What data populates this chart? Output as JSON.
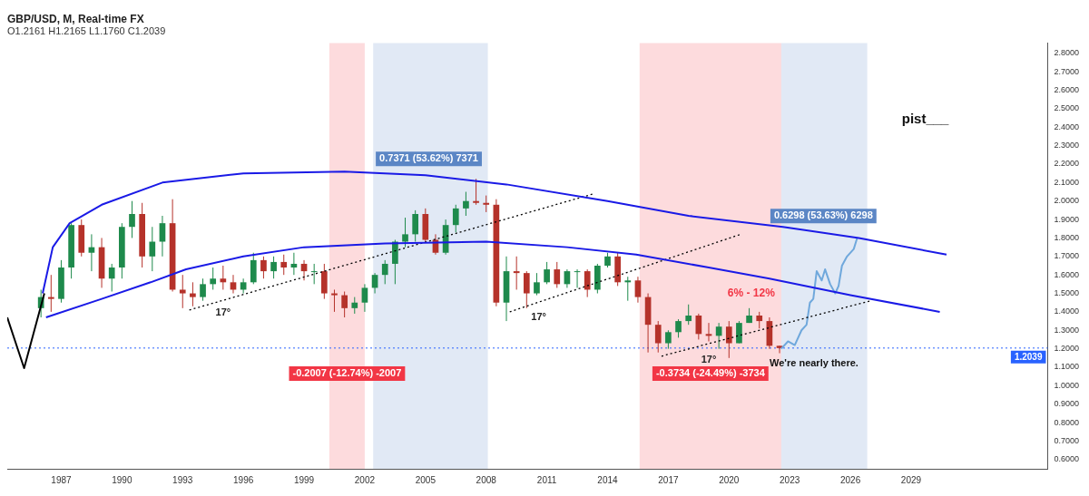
{
  "chart_data": {
    "type": "candlestick",
    "title": "GBP/USD, M, Real-time FX",
    "subtitle": "O1.2161 H1.2165 L1.1760 C1.2039",
    "x": [
      "1986-01",
      "1986-07",
      "1987-01",
      "1987-07",
      "1988-01",
      "1988-07",
      "1989-01",
      "1989-07",
      "1990-01",
      "1990-07",
      "1991-01",
      "1991-07",
      "1992-01",
      "1992-07",
      "1993-01",
      "1993-07",
      "1994-01",
      "1994-07",
      "1995-01",
      "1995-07",
      "1996-01",
      "1996-07",
      "1997-01",
      "1997-07",
      "1998-01",
      "1998-07",
      "1999-01",
      "1999-07",
      "2000-01",
      "2000-07",
      "2001-01",
      "2001-07",
      "2002-01",
      "2002-07",
      "2003-01",
      "2003-07",
      "2004-01",
      "2004-07",
      "2005-01",
      "2005-07",
      "2006-01",
      "2006-07",
      "2007-01",
      "2007-07",
      "2008-01",
      "2008-07",
      "2009-01",
      "2009-07",
      "2010-01",
      "2010-07",
      "2011-01",
      "2011-07",
      "2012-01",
      "2012-07",
      "2013-01",
      "2013-07",
      "2014-01",
      "2014-07",
      "2015-01",
      "2015-07",
      "2016-01",
      "2016-07",
      "2017-01",
      "2017-07",
      "2018-01",
      "2018-07",
      "2019-01",
      "2019-07",
      "2020-01",
      "2020-07",
      "2021-01",
      "2021-07",
      "2022-01",
      "2022-07"
    ],
    "ohlc": [
      [
        1.42,
        1.52,
        1.37,
        1.48
      ],
      [
        1.48,
        1.6,
        1.4,
        1.47
      ],
      [
        1.47,
        1.68,
        1.45,
        1.64
      ],
      [
        1.64,
        1.88,
        1.58,
        1.87
      ],
      [
        1.87,
        1.9,
        1.7,
        1.72
      ],
      [
        1.72,
        1.82,
        1.62,
        1.75
      ],
      [
        1.75,
        1.8,
        1.53,
        1.58
      ],
      [
        1.58,
        1.66,
        1.51,
        1.64
      ],
      [
        1.64,
        1.88,
        1.58,
        1.86
      ],
      [
        1.86,
        2.0,
        1.8,
        1.93
      ],
      [
        1.93,
        1.99,
        1.64,
        1.7
      ],
      [
        1.7,
        1.86,
        1.62,
        1.78
      ],
      [
        1.78,
        1.92,
        1.7,
        1.88
      ],
      [
        1.88,
        2.01,
        1.51,
        1.52
      ],
      [
        1.52,
        1.6,
        1.42,
        1.5
      ],
      [
        1.5,
        1.56,
        1.43,
        1.48
      ],
      [
        1.48,
        1.58,
        1.46,
        1.55
      ],
      [
        1.55,
        1.64,
        1.52,
        1.58
      ],
      [
        1.58,
        1.65,
        1.52,
        1.56
      ],
      [
        1.56,
        1.6,
        1.5,
        1.52
      ],
      [
        1.52,
        1.58,
        1.5,
        1.56
      ],
      [
        1.56,
        1.72,
        1.55,
        1.68
      ],
      [
        1.68,
        1.7,
        1.58,
        1.62
      ],
      [
        1.62,
        1.7,
        1.58,
        1.67
      ],
      [
        1.67,
        1.71,
        1.6,
        1.64
      ],
      [
        1.64,
        1.72,
        1.6,
        1.66
      ],
      [
        1.66,
        1.68,
        1.57,
        1.62
      ],
      [
        1.62,
        1.66,
        1.55,
        1.62
      ],
      [
        1.62,
        1.66,
        1.47,
        1.5
      ],
      [
        1.5,
        1.52,
        1.4,
        1.49
      ],
      [
        1.49,
        1.51,
        1.37,
        1.42
      ],
      [
        1.42,
        1.48,
        1.39,
        1.45
      ],
      [
        1.45,
        1.55,
        1.4,
        1.53
      ],
      [
        1.53,
        1.61,
        1.5,
        1.6
      ],
      [
        1.6,
        1.68,
        1.55,
        1.66
      ],
      [
        1.66,
        1.79,
        1.55,
        1.78
      ],
      [
        1.78,
        1.91,
        1.75,
        1.82
      ],
      [
        1.82,
        1.95,
        1.78,
        1.93
      ],
      [
        1.93,
        1.96,
        1.78,
        1.79
      ],
      [
        1.79,
        1.82,
        1.71,
        1.72
      ],
      [
        1.72,
        1.9,
        1.71,
        1.87
      ],
      [
        1.87,
        1.98,
        1.83,
        1.96
      ],
      [
        1.96,
        2.05,
        1.92,
        2.0
      ],
      [
        2.0,
        2.12,
        1.98,
        1.99
      ],
      [
        1.99,
        2.03,
        1.94,
        1.98
      ],
      [
        1.98,
        2.01,
        1.43,
        1.45
      ],
      [
        1.45,
        1.7,
        1.35,
        1.62
      ],
      [
        1.62,
        1.7,
        1.52,
        1.61
      ],
      [
        1.61,
        1.62,
        1.42,
        1.5
      ],
      [
        1.5,
        1.61,
        1.49,
        1.56
      ],
      [
        1.56,
        1.67,
        1.55,
        1.63
      ],
      [
        1.63,
        1.67,
        1.53,
        1.55
      ],
      [
        1.55,
        1.63,
        1.53,
        1.62
      ],
      [
        1.62,
        1.63,
        1.53,
        1.62
      ],
      [
        1.62,
        1.63,
        1.48,
        1.52
      ],
      [
        1.52,
        1.66,
        1.5,
        1.65
      ],
      [
        1.65,
        1.72,
        1.64,
        1.7
      ],
      [
        1.7,
        1.72,
        1.54,
        1.56
      ],
      [
        1.56,
        1.59,
        1.46,
        1.57
      ],
      [
        1.57,
        1.59,
        1.45,
        1.48
      ],
      [
        1.48,
        1.5,
        1.18,
        1.33
      ],
      [
        1.33,
        1.35,
        1.18,
        1.23
      ],
      [
        1.23,
        1.3,
        1.2,
        1.29
      ],
      [
        1.29,
        1.36,
        1.26,
        1.35
      ],
      [
        1.35,
        1.44,
        1.33,
        1.38
      ],
      [
        1.38,
        1.39,
        1.25,
        1.28
      ],
      [
        1.28,
        1.34,
        1.24,
        1.27
      ],
      [
        1.27,
        1.34,
        1.2,
        1.32
      ],
      [
        1.32,
        1.35,
        1.15,
        1.23
      ],
      [
        1.23,
        1.35,
        1.23,
        1.34
      ],
      [
        1.34,
        1.42,
        1.34,
        1.38
      ],
      [
        1.38,
        1.4,
        1.31,
        1.35
      ],
      [
        1.35,
        1.37,
        1.2,
        1.2161
      ],
      [
        1.2161,
        1.2165,
        1.176,
        1.2039
      ]
    ],
    "series": [
      {
        "type": "line",
        "color": "#000000",
        "x": [
          "1984-05",
          "1985-03",
          "1986-03"
        ],
        "values": [
          1.37,
          1.095,
          1.5
        ]
      },
      {
        "type": "line",
        "color": "#1a1ae6",
        "x": [
          "1986-02",
          "1986-08",
          "1987-06",
          "1989-01",
          "1992-01",
          "1996-01",
          "2001-01",
          "2005-01",
          "2009-01",
          "2014-01",
          "2018-01",
          "2022-09",
          "2026-06",
          "2030-10"
        ],
        "values": [
          1.5,
          1.75,
          1.88,
          1.98,
          2.1,
          2.15,
          2.16,
          2.14,
          2.09,
          2.0,
          1.92,
          1.86,
          1.8,
          1.71
        ]
      },
      {
        "type": "line",
        "color": "#1a1ae6",
        "x": [
          "1986-04",
          "1989-01",
          "1991-06",
          "1993-03",
          "1996-01",
          "1999-01",
          "2003-01",
          "2008-01",
          "2012-01",
          "2015-06",
          "2019-01",
          "2022-01",
          "2026-01",
          "2030-06"
        ],
        "values": [
          1.37,
          1.47,
          1.56,
          1.63,
          1.7,
          1.75,
          1.77,
          1.78,
          1.75,
          1.71,
          1.64,
          1.58,
          1.49,
          1.4
        ]
      },
      {
        "type": "line",
        "color": "#000000",
        "line_style": "dotted",
        "x": [
          "1993-05",
          "2013-05"
        ],
        "values": [
          1.41,
          2.04
        ]
      },
      {
        "type": "line",
        "color": "#000000",
        "line_style": "dotted",
        "x": [
          "2009-03",
          "2020-08"
        ],
        "values": [
          1.4,
          1.82
        ]
      },
      {
        "type": "line",
        "color": "#000000",
        "line_style": "dotted",
        "x": [
          "2016-09",
          "2027-01"
        ],
        "values": [
          1.16,
          1.46
        ]
      },
      {
        "type": "line",
        "color": "#6fa8dc",
        "x": [
          "2022-08",
          "2022-12",
          "2023-04",
          "2023-08",
          "2023-11",
          "2024-01",
          "2024-03",
          "2024-05",
          "2024-08",
          "2024-10",
          "2025-01",
          "2025-04",
          "2025-06",
          "2025-08",
          "2025-11",
          "2026-03",
          "2026-05"
        ],
        "values": [
          1.2,
          1.24,
          1.22,
          1.3,
          1.33,
          1.45,
          1.47,
          1.62,
          1.57,
          1.63,
          1.55,
          1.5,
          1.54,
          1.65,
          1.7,
          1.74,
          1.8
        ]
      }
    ],
    "bands": [
      {
        "axis": "x",
        "from": "2000-04",
        "to": "2002-01",
        "color": "#f23645",
        "label": "-0.2007 (-12.74%) -2007"
      },
      {
        "axis": "x",
        "from": "2002-06",
        "to": "2008-02",
        "color": "#5b86c5"
      },
      {
        "axis": "x",
        "from": "2015-08",
        "to": "2022-08",
        "color": "#f23645",
        "label": "-0.3734 (-24.49%) -3734"
      },
      {
        "axis": "x",
        "from": "2022-08",
        "to": "2026-11",
        "color": "#5b86c5"
      }
    ],
    "ref_lines": [
      {
        "axis": "y",
        "value": 1.2039,
        "label": "1.2039",
        "color": "#2962ff",
        "line_style": "dotted"
      }
    ],
    "annotations": [
      "pist___",
      "6% - 12%",
      "We're nearly there.",
      "17°",
      "17°",
      "17°",
      {
        "text": "0.7371 (53.62%) 7371",
        "x": "2005-03",
        "y": 2.16
      },
      {
        "text": "0.6298 (53.63%) 6298",
        "x": "2024-09",
        "y": 1.85
      }
    ],
    "xlim": [
      "1984-05",
      "2035-10"
    ],
    "xticks": [
      "1987",
      "1990",
      "1993",
      "1996",
      "1999",
      "2002",
      "2005",
      "2008",
      "2011",
      "2014",
      "2017",
      "2020",
      "2023",
      "2026",
      "2029"
    ],
    "ylim": [
      0.55,
      2.855
    ],
    "yticks": [
      {
        "value": 0.6,
        "label": "0.6000"
      },
      {
        "value": 0.7,
        "label": "0.7000"
      },
      {
        "value": 0.8,
        "label": "0.8000"
      },
      {
        "value": 0.9,
        "label": "0.9000"
      },
      {
        "value": 1.0,
        "label": "1.0000"
      },
      {
        "value": 1.1,
        "label": "1.1000"
      },
      {
        "value": 1.2,
        "label": "1.2000"
      },
      {
        "value": 1.3,
        "label": "1.3000"
      },
      {
        "value": 1.4,
        "label": "1.4000"
      },
      {
        "value": 1.5,
        "label": "1.5000"
      },
      {
        "value": 1.6,
        "label": "1.6000"
      },
      {
        "value": 1.7,
        "label": "1.7000"
      },
      {
        "value": 1.8,
        "label": "1.8000"
      },
      {
        "value": 1.9,
        "label": "1.9000"
      },
      {
        "value": 2.0,
        "label": "2.0000"
      },
      {
        "value": 2.1,
        "label": "2.1000"
      },
      {
        "value": 2.2,
        "label": "2.2000"
      },
      {
        "value": 2.3,
        "label": "2.3000"
      },
      {
        "value": 2.4,
        "label": "2.4000"
      },
      {
        "value": 2.5,
        "label": "2.5000"
      },
      {
        "value": 2.6,
        "label": "2.6000"
      },
      {
        "value": 2.7,
        "label": "2.7000"
      },
      {
        "value": 2.8,
        "label": "2.8000"
      }
    ],
    "grid": false,
    "legend": false
  }
}
